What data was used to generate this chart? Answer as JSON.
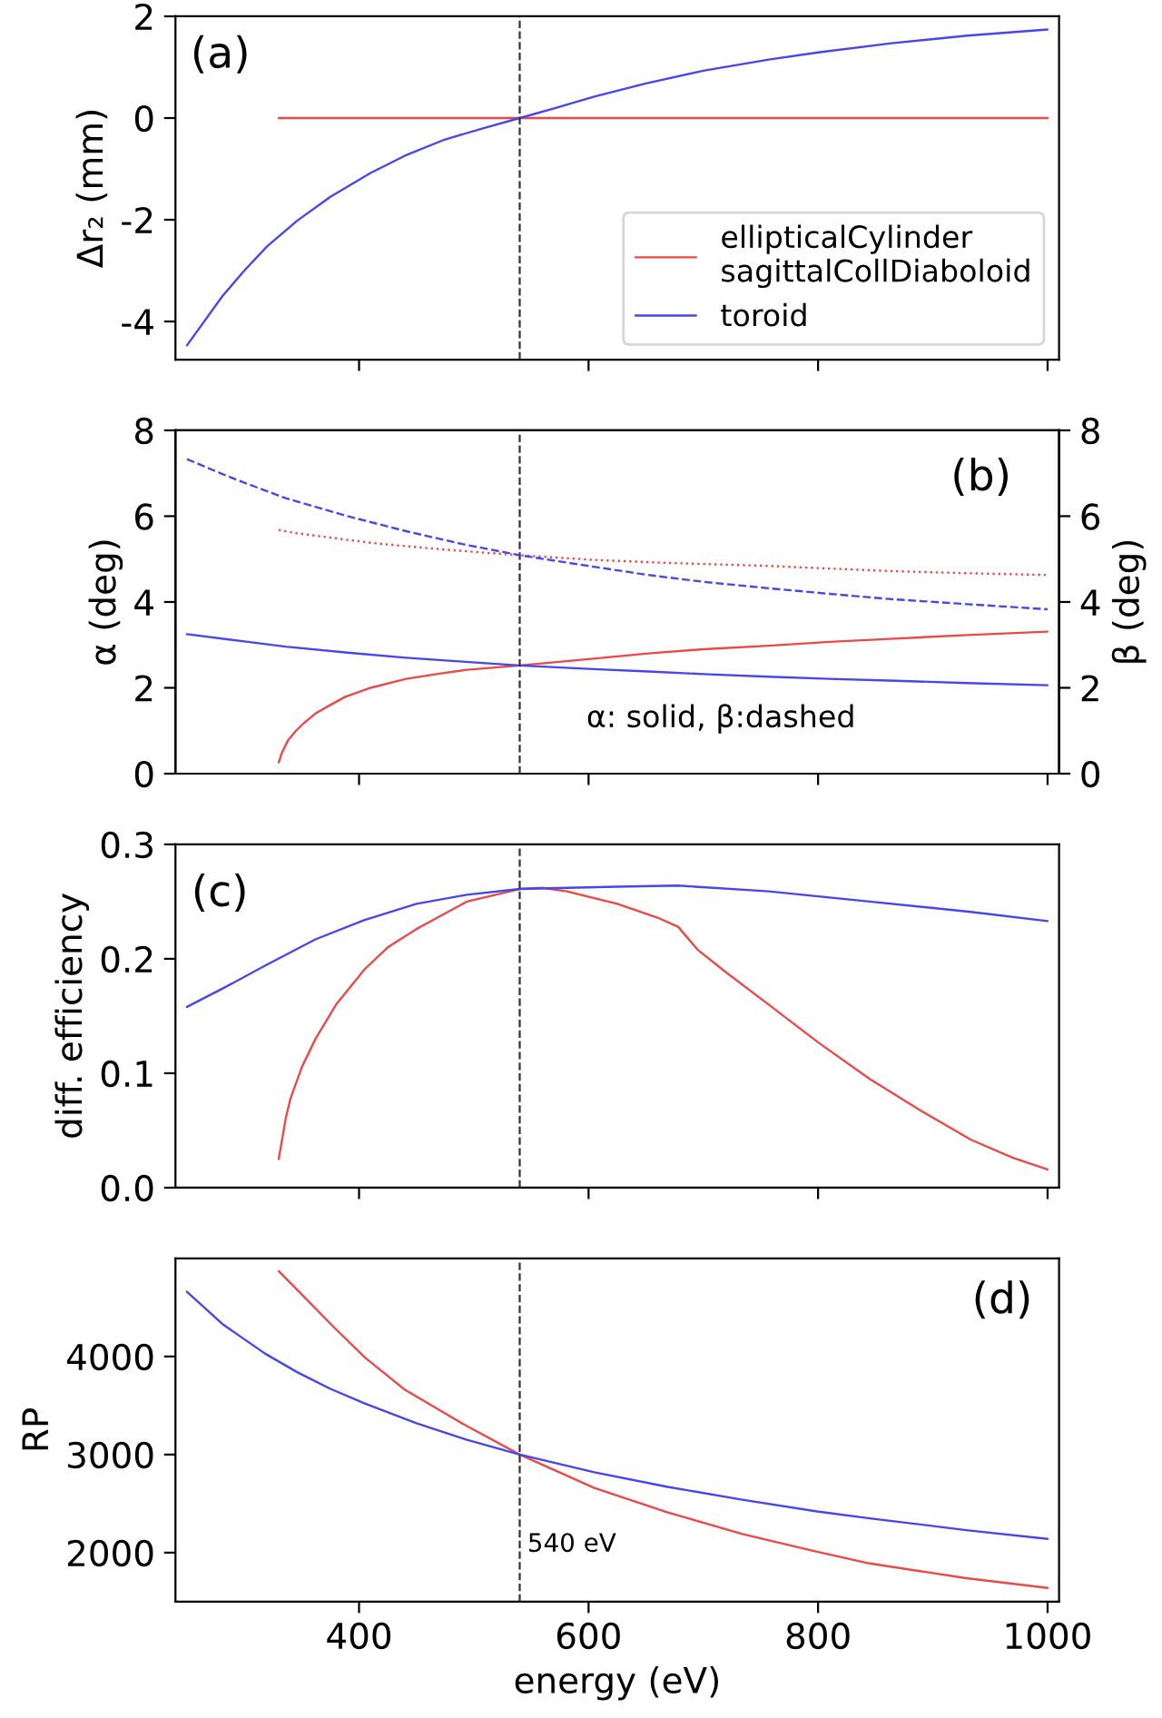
{
  "chart_data": [
    {
      "type": "line",
      "annotations": [
        "(a)"
      ],
      "ylabel": "Δr₂ (mm)",
      "xlim": [
        240,
        1010
      ],
      "xticks": [
        400,
        600,
        800,
        1000
      ],
      "ylim": [
        -4.75,
        2.0
      ],
      "yticks": [
        -4,
        -2,
        0,
        2
      ],
      "tick_labels": "y",
      "legend": "bottom right",
      "ref_lines": [
        {
          "axis": "x",
          "value": 540,
          "color": "#333333",
          "line_style": "dashed"
        }
      ],
      "series": [
        {
          "name": "ellipticalCylinder\nsagittalCollDiaboloid",
          "color": "#ec4848",
          "x": [
            330,
            1000
          ],
          "values": [
            0,
            0
          ]
        },
        {
          "name": "toroid",
          "color": "#4646ee",
          "x": [
            250,
            281,
            300,
            320,
            346,
            375,
            410,
            440,
            475,
            510,
            540,
            570,
            605,
            650,
            700,
            757,
            800,
            864,
            930,
            1000
          ],
          "values": [
            -4.47,
            -3.5,
            -3.0,
            -2.52,
            -2.02,
            -1.55,
            -1.08,
            -0.74,
            -0.42,
            -0.19,
            0,
            0.19,
            0.42,
            0.68,
            0.93,
            1.15,
            1.29,
            1.47,
            1.62,
            1.74
          ]
        }
      ]
    },
    {
      "type": "line",
      "annotations": [
        "(b)",
        "α: solid, β:dashed"
      ],
      "ylabel": "α (deg)",
      "y2label": "β (deg)",
      "xlim": [
        240,
        1010
      ],
      "xticks": [
        400,
        600,
        800,
        1000
      ],
      "ylim": [
        0,
        8
      ],
      "yticks": [
        0,
        2,
        4,
        6,
        8
      ],
      "y2lim": [
        0,
        8
      ],
      "y2ticks": [
        0,
        2,
        4,
        6,
        8
      ],
      "tick_labels": "y",
      "ref_lines": [
        {
          "axis": "x",
          "value": 540,
          "color": "#333333",
          "line_style": "dashed"
        }
      ],
      "series": [
        {
          "color": "#ec4848",
          "x": [
            330,
            333,
            338,
            345,
            352,
            362,
            375,
            388,
            410,
            441,
            470,
            494,
            540,
            600,
            652,
            700,
            757,
            810,
            862,
            930,
            1000
          ],
          "values": [
            0.26,
            0.5,
            0.77,
            1.0,
            1.18,
            1.4,
            1.6,
            1.79,
            2.0,
            2.21,
            2.33,
            2.42,
            2.52,
            2.67,
            2.8,
            2.9,
            2.98,
            3.07,
            3.14,
            3.23,
            3.31
          ]
        },
        {
          "color": "#4646ee",
          "x": [
            250,
            300,
            336,
            390,
            441,
            490,
            540,
            600,
            652,
            700,
            757,
            810,
            862,
            930,
            1000
          ],
          "values": [
            3.25,
            3.08,
            2.96,
            2.82,
            2.7,
            2.61,
            2.52,
            2.44,
            2.38,
            2.32,
            2.26,
            2.21,
            2.17,
            2.11,
            2.06
          ]
        },
        {
          "color": "#ec4848",
          "axis": "y2",
          "line_style": "dotted",
          "x": [
            330,
            346,
            410,
            441,
            475,
            540,
            605,
            670,
            757,
            800,
            864,
            930,
            1000
          ],
          "values": [
            5.68,
            5.6,
            5.38,
            5.3,
            5.22,
            5.09,
            4.98,
            4.91,
            4.84,
            4.79,
            4.72,
            4.67,
            4.63
          ]
        },
        {
          "color": "#4646ee",
          "axis": "y2",
          "line_style": "dashed",
          "x": [
            250,
            281,
            300,
            336,
            390,
            441,
            490,
            540,
            600,
            652,
            700,
            757,
            810,
            862,
            930,
            1000
          ],
          "values": [
            7.33,
            6.98,
            6.78,
            6.42,
            6.0,
            5.65,
            5.35,
            5.09,
            4.84,
            4.63,
            4.47,
            4.32,
            4.19,
            4.07,
            3.95,
            3.83
          ]
        }
      ]
    },
    {
      "type": "line",
      "annotations": [
        "(c)"
      ],
      "ylabel": "diff. efficiency",
      "xlim": [
        240,
        1010
      ],
      "xticks": [
        400,
        600,
        800,
        1000
      ],
      "ylim": [
        0,
        0.3
      ],
      "yticks": [
        {
          "value": 0,
          "label": "0.0"
        },
        0.1,
        0.2,
        0.3
      ],
      "tick_labels": "y",
      "ref_lines": [
        {
          "axis": "x",
          "value": 540,
          "color": "#333333",
          "line_style": "dashed"
        }
      ],
      "series": [
        {
          "color": "#ec4848",
          "x": [
            330,
            336,
            340,
            350,
            362,
            380,
            405,
            425,
            450,
            494,
            540,
            560,
            581,
            625,
            660,
            678,
            695,
            720,
            757,
            800,
            845,
            890,
            933,
            970,
            1000
          ],
          "values": [
            0.025,
            0.06,
            0.077,
            0.105,
            0.13,
            0.16,
            0.191,
            0.21,
            0.226,
            0.25,
            0.261,
            0.262,
            0.259,
            0.248,
            0.236,
            0.228,
            0.208,
            0.188,
            0.16,
            0.127,
            0.095,
            0.067,
            0.042,
            0.026,
            0.016
          ]
        },
        {
          "color": "#4646ee",
          "x": [
            250,
            283,
            318,
            362,
            405,
            450,
            494,
            540,
            581,
            625,
            678,
            757,
            845,
            933,
            1000
          ],
          "values": [
            0.158,
            0.175,
            0.194,
            0.217,
            0.234,
            0.248,
            0.256,
            0.261,
            0.262,
            0.263,
            0.264,
            0.259,
            0.25,
            0.241,
            0.233
          ]
        }
      ]
    },
    {
      "type": "line",
      "annotations": [
        "(d)"
      ],
      "xlabel": "energy (eV)",
      "ylabel": "RP",
      "xlim": [
        240,
        1010
      ],
      "xticks": [
        400,
        600,
        800,
        1000
      ],
      "ylim": [
        1500,
        5000
      ],
      "yticks": [
        2000,
        3000,
        4000
      ],
      "ref_lines": [
        {
          "axis": "x",
          "value": 540,
          "label": "540 eV",
          "color": "#333333",
          "line_style": "dashed"
        }
      ],
      "series": [
        {
          "color": "#ec4848",
          "x": [
            330,
            346,
            378,
            405,
            440,
            494,
            540,
            605,
            669,
            734,
            799,
            845,
            929,
            1000
          ],
          "values": [
            4870,
            4680,
            4300,
            3990,
            3660,
            3290,
            3000,
            2660,
            2410,
            2190,
            2010,
            1890,
            1740,
            1640
          ]
        },
        {
          "color": "#4646ee",
          "x": [
            250,
            281,
            318,
            346,
            375,
            405,
            450,
            494,
            540,
            605,
            669,
            734,
            799,
            845,
            929,
            1000
          ],
          "values": [
            4660,
            4330,
            4030,
            3840,
            3670,
            3520,
            3320,
            3150,
            3000,
            2820,
            2670,
            2540,
            2420,
            2350,
            2230,
            2140
          ]
        }
      ]
    }
  ]
}
